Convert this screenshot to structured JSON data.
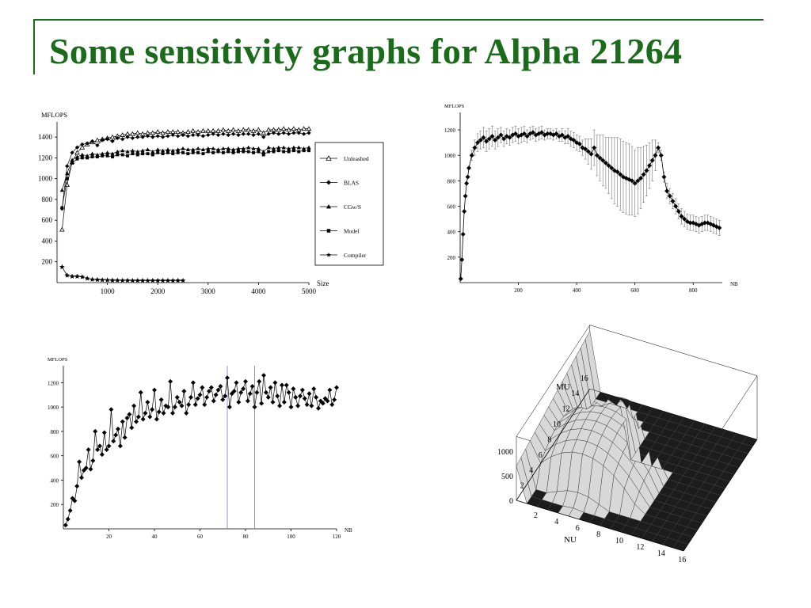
{
  "slide": {
    "title": "Some sensitivity graphs for Alpha 21264"
  },
  "colors": {
    "title": "#1a6b1a",
    "marker": "#000000",
    "error_bar": "#777777",
    "vertical_line": "#8a8ab8",
    "surface_light": "#d8d8d8",
    "surface_dark": "#1c1c1c"
  },
  "chart_data": [
    {
      "type": "line",
      "ylabel": "MFLOPS",
      "xlabel": "Size",
      "xlim": [
        0,
        5000
      ],
      "ylim": [
        0,
        1500
      ],
      "xticks": [
        1000,
        2000,
        3000,
        4000,
        5000
      ],
      "yticks": [
        200,
        400,
        600,
        800,
        1000,
        1200,
        1400
      ],
      "legend": "right",
      "series": [
        {
          "name": "Unleashed",
          "marker": "open-triangle",
          "x": [
            100,
            200,
            300,
            400,
            500,
            600,
            700,
            800,
            900,
            1000,
            1100,
            1200,
            1300,
            1400,
            1500,
            1600,
            1700,
            1800,
            1900,
            2000,
            2100,
            2200,
            2300,
            2400,
            2500,
            2600,
            2700,
            2800,
            2900,
            3000,
            3100,
            3200,
            3300,
            3400,
            3500,
            3600,
            3700,
            3800,
            3900,
            4000,
            4100,
            4200,
            4300,
            4400,
            4500,
            4600,
            4700,
            4800,
            4900,
            5000
          ],
          "values": [
            510,
            940,
            1160,
            1250,
            1300,
            1330,
            1350,
            1370,
            1380,
            1390,
            1400,
            1410,
            1420,
            1430,
            1430,
            1440,
            1430,
            1440,
            1440,
            1450,
            1440,
            1450,
            1450,
            1450,
            1440,
            1450,
            1460,
            1450,
            1460,
            1460,
            1460,
            1460,
            1470,
            1460,
            1470,
            1460,
            1470,
            1470,
            1460,
            1470,
            1440,
            1470,
            1470,
            1470,
            1480,
            1470,
            1480,
            1470,
            1480,
            1480
          ]
        },
        {
          "name": "BLAS",
          "marker": "filled-diamond",
          "x": [
            100,
            200,
            300,
            400,
            500,
            600,
            700,
            800,
            900,
            1000,
            1100,
            1200,
            1300,
            1400,
            1500,
            1600,
            1700,
            1800,
            1900,
            2000,
            2100,
            2200,
            2300,
            2400,
            2500,
            2600,
            2700,
            2800,
            2900,
            3000,
            3100,
            3200,
            3300,
            3400,
            3500,
            3600,
            3700,
            3800,
            3900,
            4000,
            4100,
            4200,
            4300,
            4400,
            4500,
            4600,
            4700,
            4800,
            4900,
            5000
          ],
          "values": [
            710,
            1120,
            1250,
            1300,
            1330,
            1340,
            1360,
            1320,
            1370,
            1380,
            1360,
            1390,
            1380,
            1400,
            1390,
            1400,
            1400,
            1410,
            1400,
            1410,
            1400,
            1410,
            1420,
            1410,
            1420,
            1410,
            1420,
            1420,
            1410,
            1420,
            1430,
            1420,
            1430,
            1420,
            1430,
            1420,
            1430,
            1430,
            1420,
            1430,
            1400,
            1430,
            1440,
            1430,
            1440,
            1430,
            1440,
            1440,
            1430,
            1440
          ]
        },
        {
          "name": "CGw/S",
          "marker": "filled-triangle",
          "x": [
            100,
            200,
            300,
            400,
            500,
            600,
            700,
            800,
            900,
            1000,
            1100,
            1200,
            1300,
            1400,
            1500,
            1600,
            1700,
            1800,
            1900,
            2000,
            2100,
            2200,
            2300,
            2400,
            2500,
            2600,
            2700,
            2800,
            2900,
            3000,
            3100,
            3200,
            3300,
            3400,
            3500,
            3600,
            3700,
            3800,
            3900,
            4000,
            4100,
            4200,
            4300,
            4400,
            4500,
            4600,
            4700,
            4800,
            4900,
            5000
          ],
          "values": [
            890,
            1050,
            1180,
            1210,
            1230,
            1220,
            1240,
            1230,
            1240,
            1250,
            1240,
            1260,
            1270,
            1260,
            1270,
            1260,
            1270,
            1280,
            1260,
            1280,
            1270,
            1280,
            1270,
            1280,
            1290,
            1280,
            1280,
            1290,
            1280,
            1290,
            1290,
            1280,
            1290,
            1290,
            1280,
            1290,
            1290,
            1300,
            1290,
            1290,
            1260,
            1300,
            1290,
            1300,
            1300,
            1290,
            1300,
            1300,
            1290,
            1300
          ]
        },
        {
          "name": "Model",
          "marker": "filled-square",
          "x": [
            100,
            200,
            300,
            400,
            500,
            600,
            700,
            800,
            900,
            1000,
            1100,
            1200,
            1300,
            1400,
            1500,
            1600,
            1700,
            1800,
            1900,
            2000,
            2100,
            2200,
            2300,
            2400,
            2500,
            2600,
            2700,
            2800,
            2900,
            3000,
            3100,
            3200,
            3300,
            3400,
            3500,
            3600,
            3700,
            3800,
            3900,
            4000,
            4100,
            4200,
            4300,
            4400,
            4500,
            4600,
            4700,
            4800,
            4900,
            5000
          ],
          "values": [
            720,
            1000,
            1150,
            1190,
            1200,
            1200,
            1210,
            1210,
            1220,
            1220,
            1210,
            1230,
            1230,
            1220,
            1240,
            1230,
            1240,
            1240,
            1230,
            1250,
            1240,
            1250,
            1240,
            1250,
            1250,
            1240,
            1250,
            1250,
            1240,
            1260,
            1250,
            1260,
            1250,
            1260,
            1250,
            1260,
            1260,
            1260,
            1250,
            1260,
            1230,
            1260,
            1260,
            1270,
            1260,
            1260,
            1270,
            1260,
            1270,
            1270
          ]
        },
        {
          "name": "Compiler",
          "marker": "filled-star",
          "x": [
            100,
            200,
            300,
            400,
            500,
            600,
            700,
            800,
            900,
            1000,
            1100,
            1200,
            1300,
            1400,
            1500,
            1600,
            1700,
            1800,
            1900,
            2000,
            2100,
            2200,
            2300,
            2400,
            2500
          ],
          "values": [
            150,
            70,
            60,
            60,
            55,
            40,
            30,
            28,
            25,
            24,
            22,
            22,
            21,
            21,
            20,
            20,
            20,
            20,
            20,
            20,
            20,
            20,
            20,
            20,
            20
          ]
        }
      ]
    },
    {
      "type": "scatter",
      "ylabel": "MFLOPS",
      "xlabel": "NB",
      "xlim": [
        0,
        900
      ],
      "ylim": [
        0,
        1300
      ],
      "xticks": [
        200,
        400,
        600,
        800
      ],
      "yticks": [
        200,
        400,
        600,
        800,
        1000,
        1200
      ],
      "error_bars": true,
      "x": [
        2,
        6,
        10,
        14,
        18,
        22,
        26,
        30,
        40,
        50,
        60,
        70,
        80,
        90,
        100,
        110,
        120,
        130,
        140,
        150,
        160,
        170,
        180,
        190,
        200,
        210,
        220,
        230,
        240,
        250,
        260,
        270,
        280,
        290,
        300,
        310,
        320,
        330,
        340,
        350,
        360,
        370,
        380,
        390,
        400,
        410,
        420,
        430,
        440,
        450,
        460,
        470,
        480,
        490,
        500,
        510,
        520,
        530,
        540,
        550,
        560,
        570,
        580,
        590,
        600,
        610,
        620,
        630,
        640,
        650,
        660,
        670,
        680,
        690,
        700,
        710,
        720,
        730,
        740,
        750,
        760,
        770,
        780,
        790,
        800,
        810,
        820,
        830,
        840,
        850,
        860,
        870,
        880,
        890
      ],
      "values": [
        30,
        180,
        380,
        560,
        680,
        780,
        830,
        900,
        1000,
        1060,
        1100,
        1120,
        1140,
        1110,
        1130,
        1150,
        1120,
        1140,
        1160,
        1130,
        1150,
        1140,
        1160,
        1170,
        1150,
        1160,
        1170,
        1150,
        1170,
        1180,
        1160,
        1170,
        1180,
        1160,
        1170,
        1170,
        1160,
        1170,
        1150,
        1160,
        1140,
        1150,
        1130,
        1120,
        1100,
        1090,
        1060,
        1050,
        1030,
        1010,
        1060,
        1000,
        980,
        960,
        940,
        920,
        900,
        880,
        870,
        850,
        830,
        820,
        810,
        800,
        780,
        800,
        820,
        850,
        880,
        920,
        960,
        1000,
        1060,
        1000,
        830,
        720,
        680,
        640,
        600,
        560,
        520,
        500,
        480,
        470,
        470,
        460,
        450,
        460,
        470,
        470,
        460,
        450,
        440,
        430
      ],
      "error": [
        0,
        0,
        0,
        0,
        0,
        0,
        0,
        0,
        40,
        60,
        70,
        70,
        80,
        80,
        80,
        80,
        70,
        70,
        60,
        60,
        60,
        60,
        60,
        60,
        60,
        60,
        60,
        50,
        50,
        50,
        50,
        50,
        50,
        40,
        40,
        40,
        40,
        40,
        40,
        50,
        50,
        60,
        60,
        60,
        60,
        60,
        60,
        80,
        100,
        120,
        140,
        160,
        180,
        200,
        200,
        220,
        240,
        260,
        270,
        280,
        280,
        280,
        280,
        270,
        260,
        260,
        240,
        220,
        200,
        180,
        160,
        120,
        40,
        40,
        40,
        60,
        60,
        60,
        60,
        60,
        60,
        60,
        60,
        60,
        60,
        60,
        60,
        60,
        60,
        60,
        60,
        60,
        60,
        60
      ]
    },
    {
      "type": "line",
      "ylabel": "MFLOPS",
      "xlabel": "NB",
      "xlim": [
        0,
        120
      ],
      "ylim": [
        0,
        1300
      ],
      "xticks": [
        20,
        40,
        60,
        80,
        100,
        120
      ],
      "yticks": [
        200,
        400,
        600,
        800,
        1000,
        1200
      ],
      "reference_lines_x": [
        72,
        84
      ],
      "x": [
        1,
        2,
        3,
        4,
        5,
        6,
        7,
        8,
        9,
        10,
        11,
        12,
        13,
        14,
        15,
        16,
        17,
        18,
        19,
        20,
        21,
        22,
        23,
        24,
        25,
        26,
        27,
        28,
        29,
        30,
        31,
        32,
        33,
        34,
        35,
        36,
        37,
        38,
        39,
        40,
        41,
        42,
        43,
        44,
        45,
        46,
        47,
        48,
        49,
        50,
        51,
        52,
        53,
        54,
        55,
        56,
        57,
        58,
        59,
        60,
        61,
        62,
        63,
        64,
        65,
        66,
        67,
        68,
        69,
        70,
        71,
        72,
        73,
        74,
        75,
        76,
        77,
        78,
        79,
        80,
        81,
        82,
        83,
        84,
        85,
        86,
        87,
        88,
        89,
        90,
        91,
        92,
        93,
        94,
        95,
        96,
        97,
        98,
        99,
        100,
        101,
        102,
        103,
        104,
        105,
        106,
        107,
        108,
        109,
        110,
        111,
        112,
        113,
        114,
        115,
        116,
        117,
        118,
        119,
        120
      ],
      "values": [
        30,
        80,
        150,
        250,
        230,
        350,
        550,
        420,
        480,
        500,
        650,
        490,
        560,
        800,
        650,
        680,
        610,
        790,
        650,
        680,
        980,
        720,
        770,
        820,
        680,
        880,
        750,
        910,
        940,
        830,
        1010,
        880,
        920,
        1120,
        900,
        950,
        1040,
        920,
        980,
        1140,
        900,
        960,
        1060,
        950,
        1010,
        1000,
        1210,
        950,
        1000,
        1080,
        1040,
        1010,
        1130,
        950,
        1020,
        1080,
        1200,
        1020,
        1070,
        1100,
        1160,
        1020,
        1080,
        1130,
        1160,
        1050,
        1100,
        1140,
        1170,
        1060,
        1090,
        1240,
        1000,
        1110,
        1130,
        1200,
        1040,
        1120,
        1150,
        1210,
        1050,
        1110,
        1170,
        1000,
        1120,
        1210,
        1030,
        1260,
        1120,
        1080,
        1160,
        1040,
        1200,
        1090,
        1010,
        1180,
        1040,
        1180,
        1120,
        1000,
        1150,
        1080,
        1010,
        1090,
        1140,
        1070,
        1020,
        1110,
        1010,
        1150,
        1080,
        990,
        1050,
        1030,
        1070,
        1050,
        1140,
        1020,
        1060,
        1160
      ]
    },
    {
      "type": "surface",
      "zticks": [
        0,
        500,
        1000
      ],
      "mu_label": "MU",
      "mu_ticks": [
        2,
        4,
        6,
        8,
        10,
        12,
        14,
        16
      ],
      "nu_label": "NU",
      "nu_ticks": [
        2,
        4,
        6,
        8,
        10,
        12,
        14,
        16
      ]
    }
  ]
}
